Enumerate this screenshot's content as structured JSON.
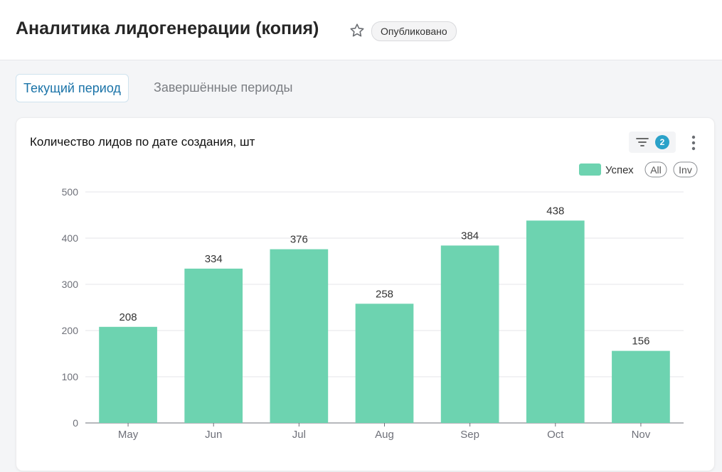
{
  "header": {
    "title": "Аналитика лидогенерации (копия)",
    "status_badge": "Опубликовано"
  },
  "tabs": [
    {
      "label": "Текущий период",
      "active": true
    },
    {
      "label": "Завершённые периоды",
      "active": false
    }
  ],
  "widget": {
    "filter_count": "2"
  },
  "colors": {
    "bar": "#6dd3b0",
    "accent": "#1a73a8",
    "badge": "#2ba2c9"
  },
  "chart_data": {
    "type": "bar",
    "title": "Количество лидов по дате создания, шт",
    "categories": [
      "May",
      "Jun",
      "Jul",
      "Aug",
      "Sep",
      "Oct",
      "Nov"
    ],
    "series": [
      {
        "name": "Успех",
        "values": [
          208,
          334,
          376,
          258,
          384,
          438,
          156
        ]
      }
    ],
    "ylim": [
      0,
      500
    ],
    "yticks": [
      0,
      100,
      200,
      300,
      400,
      500
    ],
    "xlabel": "",
    "ylabel": "",
    "grid": true,
    "legend_position": "top-right",
    "legend_buttons": [
      "All",
      "Inv"
    ],
    "data_labels": true
  }
}
